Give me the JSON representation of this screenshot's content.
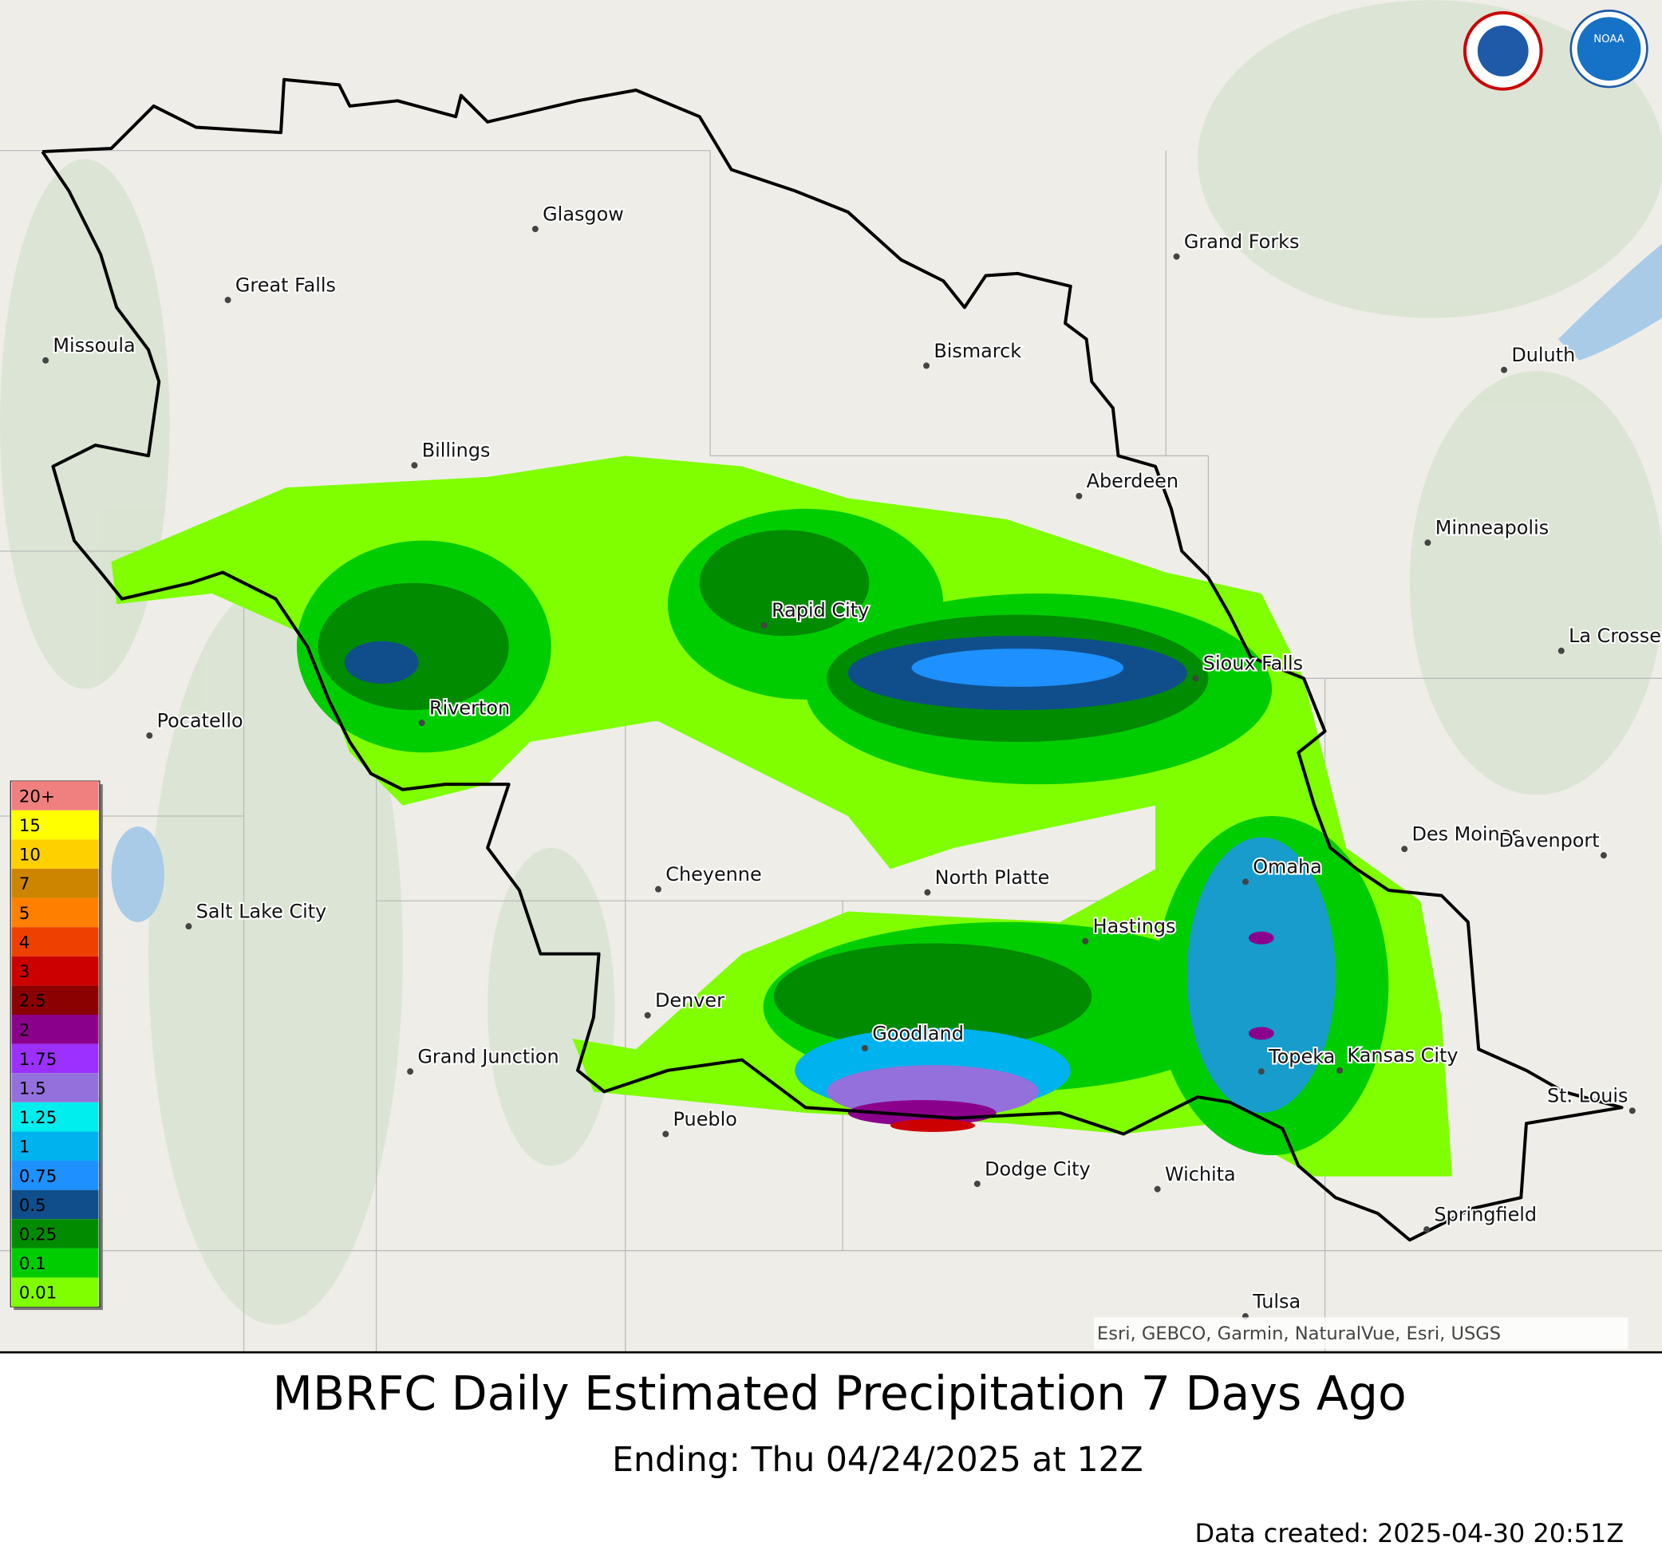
{
  "map": {
    "title": "MBRFC Daily Estimated Precipitation 7 Days Ago",
    "subtitle": "Ending: Thu 04/24/2025 at 12Z",
    "created": "Data created: 2025-04-30 20:51Z",
    "attribution": "Esri, GEBCO, Garmin, NaturalVue, Esri, USGS",
    "logos": [
      "NOAA"
    ],
    "cities": [
      "Glasgow",
      "Great Falls",
      "Missoula",
      "Bismarck",
      "Grand Forks",
      "Duluth",
      "Billings",
      "Aberdeen",
      "Minneapolis",
      "Rapid City",
      "La Crosse",
      "Sioux Falls",
      "Pocatello",
      "Riverton",
      "Des Moines",
      "Davenport",
      "Cheyenne",
      "North Platte",
      "Omaha",
      "Salt Lake City",
      "Hastings",
      "Denver",
      "Goodland",
      "Grand Junction",
      "Topeka",
      "Kansas City",
      "St. Louis",
      "Pueblo",
      "Dodge City",
      "Wichita",
      "Springfield",
      "Tulsa"
    ],
    "legend": [
      {
        "label": "20+",
        "color": "#f08080"
      },
      {
        "label": "15",
        "color": "#ffff00"
      },
      {
        "label": "10",
        "color": "#ffd000"
      },
      {
        "label": "7",
        "color": "#cd8500"
      },
      {
        "label": "5",
        "color": "#ff7f00"
      },
      {
        "label": "4",
        "color": "#ee4000"
      },
      {
        "label": "3",
        "color": "#cd0000"
      },
      {
        "label": "2.5",
        "color": "#8b0000"
      },
      {
        "label": "2",
        "color": "#8b008b"
      },
      {
        "label": "1.75",
        "color": "#9b30ff"
      },
      {
        "label": "1.5",
        "color": "#9370db"
      },
      {
        "label": "1.25",
        "color": "#00eeee"
      },
      {
        "label": "1",
        "color": "#00b2ee"
      },
      {
        "label": "0.75",
        "color": "#1e90ff"
      },
      {
        "label": "0.5",
        "color": "#104e8b"
      },
      {
        "label": "0.25",
        "color": "#008b00"
      },
      {
        "label": "0.1",
        "color": "#00cd00"
      },
      {
        "label": "0.01",
        "color": "#7fff00"
      }
    ]
  }
}
